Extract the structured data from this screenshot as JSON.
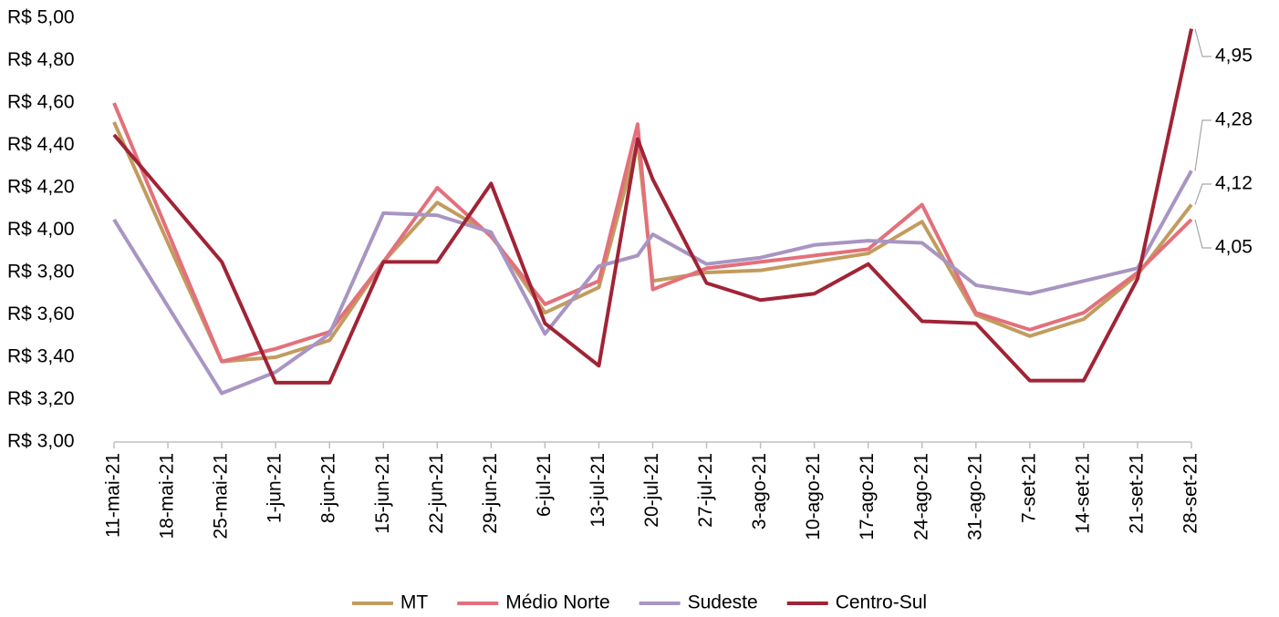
{
  "chart_data": {
    "type": "line",
    "categories": [
      "11-mai-21",
      "18-mai-21",
      "25-mai-21",
      "1-jun-21",
      "8-jun-21",
      "15-jun-21",
      "22-jun-21",
      "29-jun-21",
      "6-jul-21",
      "13-jul-21",
      null,
      "20-jul-21",
      "27-jul-21",
      "3-ago-21",
      "10-ago-21",
      "17-ago-21",
      "24-ago-21",
      "31-ago-21",
      "7-set-21",
      "14-set-21",
      "21-set-21",
      "28-set-21"
    ],
    "ylim": [
      3,
      5
    ],
    "yticks": [
      {
        "value": 3,
        "label": "R$ 3,00"
      },
      {
        "value": 3.2,
        "label": "R$ 3,20"
      },
      {
        "value": 3.4,
        "label": "R$ 3,40"
      },
      {
        "value": 3.6,
        "label": "R$ 3,60"
      },
      {
        "value": 3.8,
        "label": "R$ 3,80"
      },
      {
        "value": 4,
        "label": "R$ 4,00"
      },
      {
        "value": 4.2,
        "label": "R$ 4,20"
      },
      {
        "value": 4.4,
        "label": "R$ 4,40"
      },
      {
        "value": 4.6,
        "label": "R$ 4,60"
      },
      {
        "value": 4.8,
        "label": "R$ 4,80"
      },
      {
        "value": 5,
        "label": "R$ 5,00"
      }
    ],
    "grid": false,
    "legend": "bottom",
    "series": [
      {
        "name": "MT",
        "color": "#c29c5e",
        "values": [
          4.51,
          3.94,
          3.38,
          3.4,
          3.48,
          3.85,
          4.13,
          3.98,
          3.61,
          3.73,
          4.42,
          3.76,
          3.8,
          3.81,
          3.85,
          3.89,
          4.04,
          3.6,
          3.5,
          3.58,
          3.79,
          4.12
        ],
        "value_labels": [
          null,
          null,
          null,
          null,
          null,
          null,
          null,
          null,
          null,
          null,
          null,
          null,
          null,
          null,
          null,
          null,
          null,
          null,
          null,
          null,
          null,
          "4,12"
        ]
      },
      {
        "name": "Médio Norte",
        "color": "#e3707b",
        "values": [
          4.6,
          3.99,
          3.38,
          3.44,
          3.52,
          3.85,
          4.2,
          3.97,
          3.65,
          3.76,
          4.5,
          3.72,
          3.82,
          3.85,
          3.88,
          3.91,
          4.12,
          3.61,
          3.53,
          3.61,
          3.8,
          4.05
        ],
        "value_labels": [
          null,
          null,
          null,
          null,
          null,
          null,
          null,
          null,
          null,
          null,
          null,
          null,
          null,
          null,
          null,
          null,
          null,
          null,
          null,
          null,
          null,
          "4,05"
        ]
      },
      {
        "name": "Sudeste",
        "color": "#a895c2",
        "values": [
          4.05,
          3.64,
          3.23,
          3.33,
          3.51,
          4.08,
          4.07,
          3.99,
          3.51,
          3.83,
          3.88,
          3.98,
          3.84,
          3.87,
          3.93,
          3.95,
          3.94,
          3.74,
          3.7,
          3.76,
          3.82,
          4.28
        ],
        "value_labels": [
          null,
          null,
          null,
          null,
          null,
          null,
          null,
          null,
          null,
          null,
          null,
          null,
          null,
          null,
          null,
          null,
          null,
          null,
          null,
          null,
          null,
          "4,28"
        ]
      },
      {
        "name": "Centro-Sul",
        "color": "#a02436",
        "values": [
          4.45,
          4.15,
          3.85,
          3.28,
          3.28,
          3.85,
          3.85,
          4.22,
          3.56,
          3.36,
          4.43,
          4.24,
          3.75,
          3.67,
          3.7,
          3.84,
          3.57,
          3.56,
          3.29,
          3.29,
          3.77,
          4.95
        ],
        "value_labels": [
          null,
          null,
          null,
          null,
          null,
          null,
          null,
          null,
          null,
          null,
          null,
          null,
          null,
          null,
          null,
          null,
          null,
          null,
          null,
          null,
          null,
          "4,95"
        ]
      }
    ]
  }
}
